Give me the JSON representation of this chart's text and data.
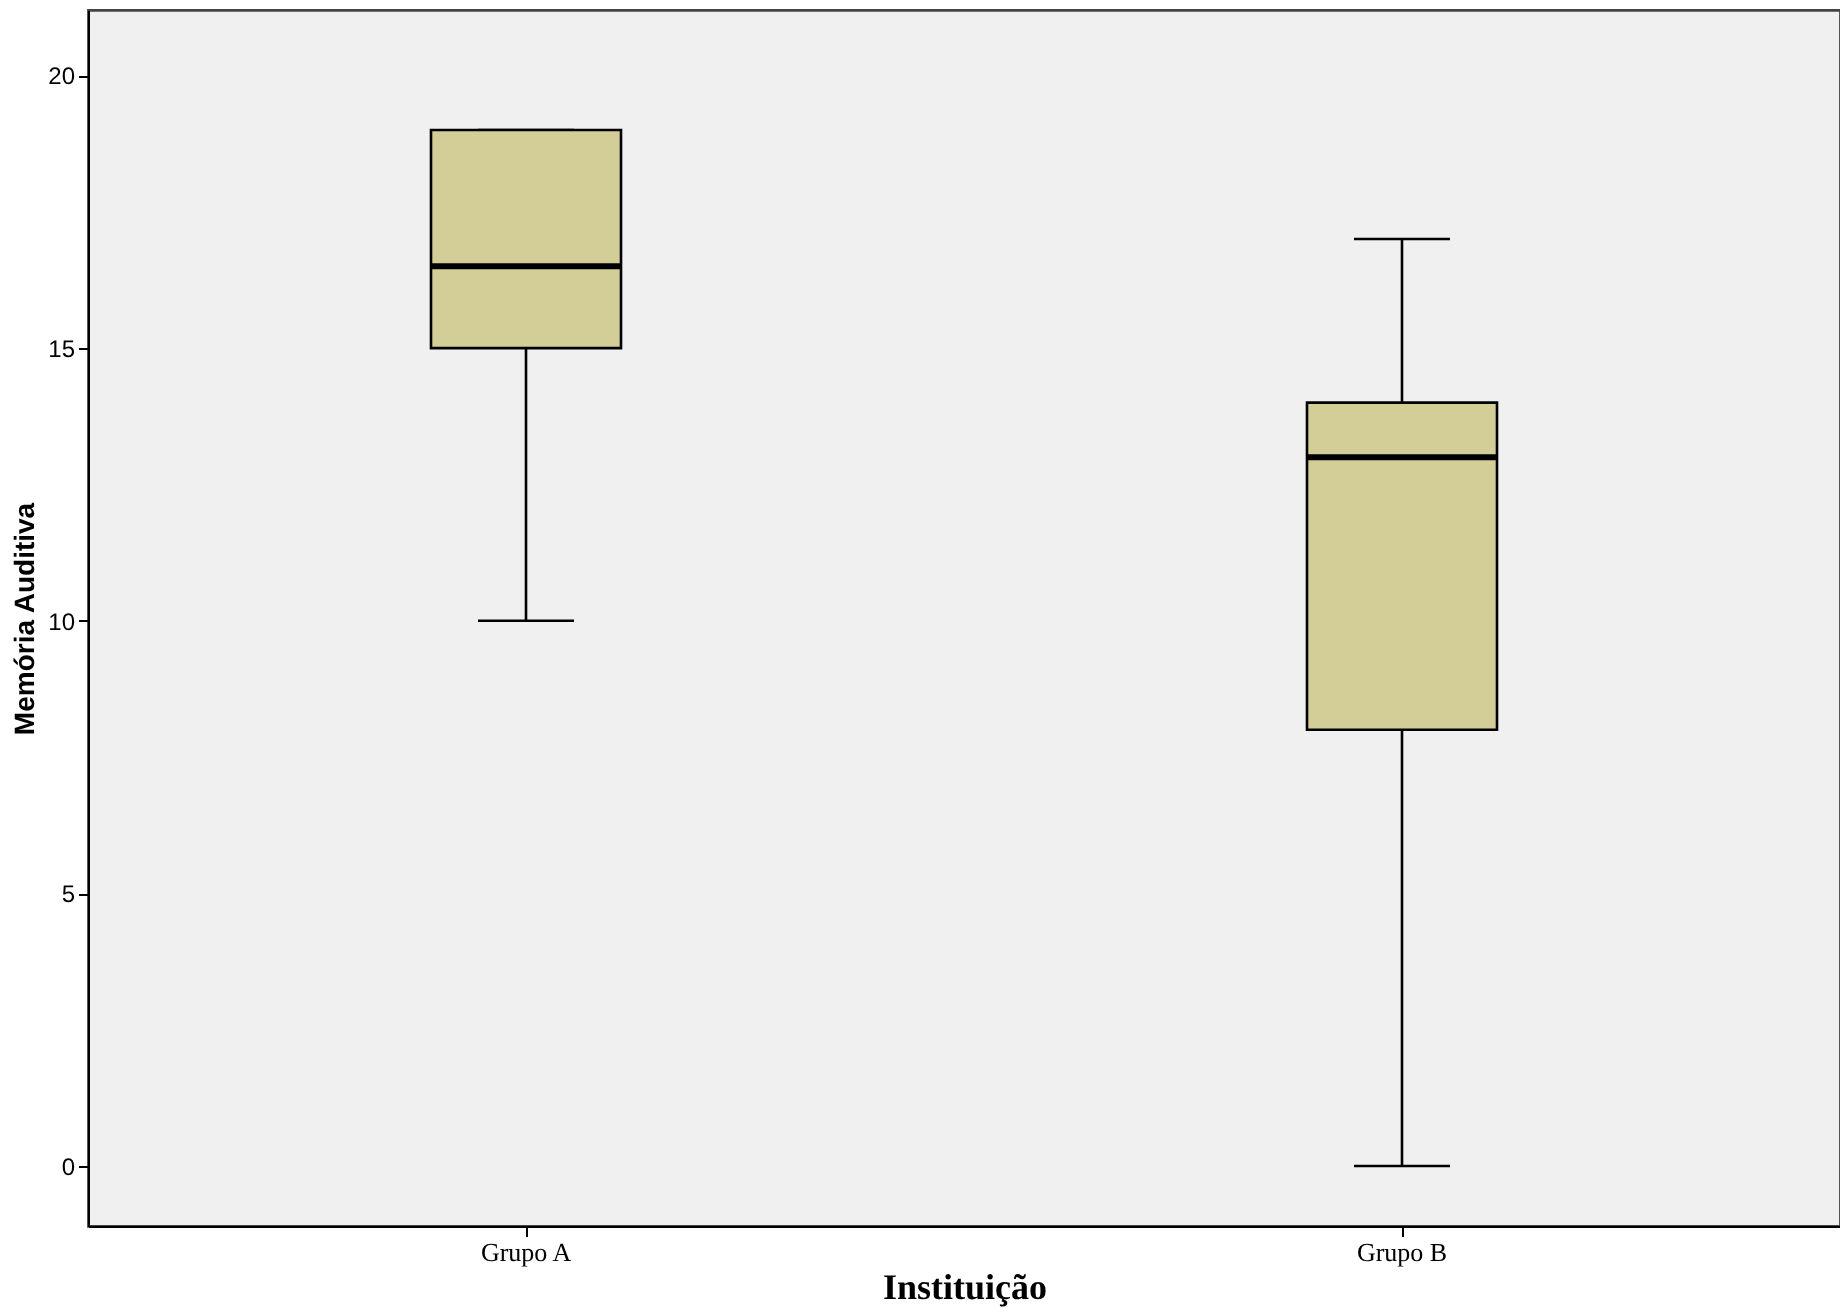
{
  "chart_data": {
    "type": "box",
    "xlabel": "Instituição",
    "ylabel": "Memória Auditiva",
    "categories": [
      "Grupo A",
      "Grupo B"
    ],
    "boxes": [
      {
        "low": 10,
        "q1": 15,
        "median": 16.5,
        "q3": 19,
        "high": 19
      },
      {
        "low": 0,
        "q1": 8,
        "median": 13,
        "q3": 14,
        "high": 17
      }
    ],
    "color": "#d3ce97",
    "ylim": [
      -1.1,
      21.2
    ],
    "yticks": [
      0,
      5,
      10,
      15,
      20
    ],
    "grid": false
  }
}
